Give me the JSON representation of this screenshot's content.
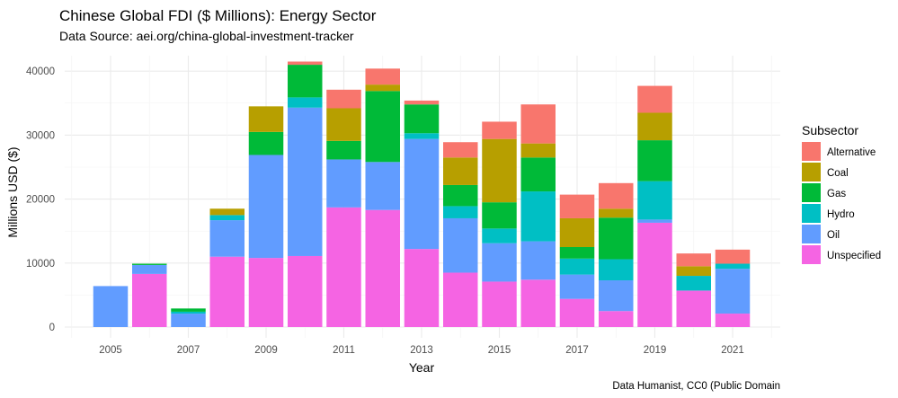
{
  "chart_data": {
    "type": "bar",
    "stacked": true,
    "title": "Chinese Global FDI ($ Millions): Energy Sector",
    "subtitle": "Data Source: aei.org/china-global-investment-tracker",
    "xlabel": "Year",
    "ylabel": "Millions USD ($)",
    "caption": "Data Humanist, CC0 (Public Domain",
    "legend_title": "Subsector",
    "legend_position": "right",
    "grid": true,
    "ylim": [
      0,
      42000
    ],
    "yticks": [
      0,
      10000,
      20000,
      30000,
      40000
    ],
    "xticks": [
      2005,
      2007,
      2009,
      2011,
      2013,
      2015,
      2017,
      2019,
      2021
    ],
    "categories": [
      2005,
      2006,
      2007,
      2008,
      2009,
      2010,
      2011,
      2012,
      2013,
      2014,
      2015,
      2016,
      2017,
      2018,
      2019,
      2020,
      2021
    ],
    "series": [
      {
        "name": "Alternative",
        "color": "#F8766D",
        "values": [
          0,
          0,
          0,
          0,
          0,
          500,
          2900,
          2500,
          600,
          2400,
          2700,
          6100,
          3700,
          4000,
          4200,
          2000,
          2200
        ]
      },
      {
        "name": "Coal",
        "color": "#B79F00",
        "values": [
          0,
          0,
          0,
          1000,
          4000,
          0,
          5100,
          1000,
          0,
          4300,
          9900,
          2200,
          4500,
          1400,
          4300,
          1500,
          0
        ]
      },
      {
        "name": "Gas",
        "color": "#00BA38",
        "values": [
          0,
          200,
          500,
          0,
          3600,
          5100,
          2900,
          11100,
          4500,
          3300,
          4100,
          5300,
          1800,
          6500,
          6400,
          0,
          0
        ]
      },
      {
        "name": "Hydro",
        "color": "#00BFC4",
        "values": [
          0,
          0,
          300,
          800,
          0,
          1600,
          0,
          0,
          900,
          1900,
          2300,
          7800,
          2500,
          3300,
          6000,
          2300,
          800
        ]
      },
      {
        "name": "Oil",
        "color": "#619CFF",
        "values": [
          6400,
          1400,
          2100,
          5700,
          16100,
          23200,
          7500,
          7500,
          17200,
          8500,
          6000,
          6000,
          3800,
          4800,
          500,
          0,
          7000
        ]
      },
      {
        "name": "Unspecified",
        "color": "#F564E3",
        "values": [
          0,
          8300,
          0,
          11000,
          10800,
          11100,
          18700,
          18300,
          12200,
          8500,
          7100,
          7400,
          4400,
          2500,
          16300,
          5700,
          2100
        ]
      }
    ]
  }
}
